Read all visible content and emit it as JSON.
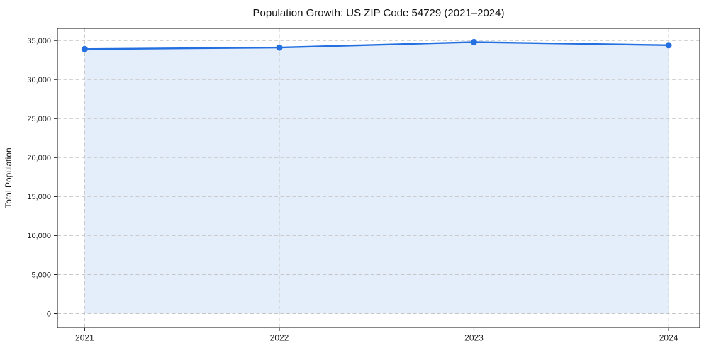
{
  "chart_data": {
    "type": "line",
    "title": "Population Growth: US ZIP Code 54729 (2021–2024)",
    "xlabel": "",
    "ylabel": "Total Population",
    "x": [
      2021,
      2022,
      2023,
      2024
    ],
    "x_tick_labels": [
      "2021",
      "2022",
      "2023",
      "2024"
    ],
    "series": [
      {
        "name": "Total Population",
        "values": [
          33900,
          34100,
          34800,
          34400
        ],
        "marker": "circle",
        "fill_to_zero": true
      }
    ],
    "y_ticks": [
      0,
      5000,
      10000,
      15000,
      20000,
      25000,
      30000,
      35000
    ],
    "y_tick_labels": [
      "0",
      "5,000",
      "10,000",
      "15,000",
      "20,000",
      "25,000",
      "30,000",
      "35,000"
    ],
    "xlim": [
      2020.86,
      2024.16
    ],
    "ylim": [
      -1770,
      36560
    ],
    "grid": true,
    "grid_style": "dashed",
    "legend": "none",
    "colors": {
      "line": "#2470e0",
      "fill": "rgba(36,112,224,0.12)",
      "grid": "#c6c6c6",
      "axis": "#222222",
      "tick_text": "#1a1a1a",
      "background": "#ffffff"
    }
  }
}
